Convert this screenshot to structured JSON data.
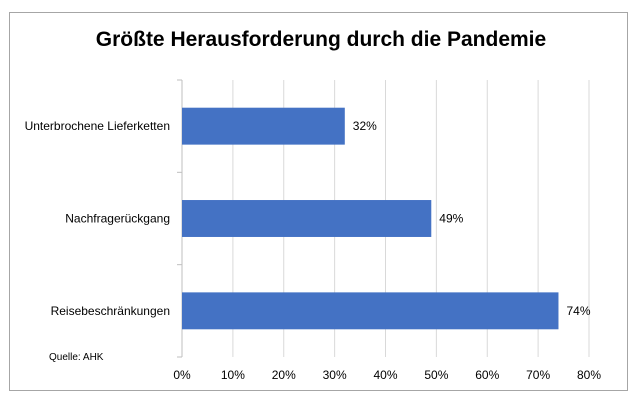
{
  "chart_data": {
    "type": "bar",
    "orientation": "horizontal",
    "title": "Größte Herausforderung durch die Pandemie",
    "categories": [
      "Unterbrochene Lieferketten",
      "Nachfragerückgang",
      "Reisebeschränkungen"
    ],
    "values": [
      32,
      49,
      74
    ],
    "value_labels": [
      "32%",
      "49%",
      "74%"
    ],
    "xlim": [
      0,
      80
    ],
    "x_ticks": [
      "0%",
      "10%",
      "20%",
      "30%",
      "40%",
      "50%",
      "60%",
      "70%",
      "80%"
    ],
    "grid": "vertical",
    "bar_color": "#4472c4",
    "source": "Quelle: AHK"
  }
}
